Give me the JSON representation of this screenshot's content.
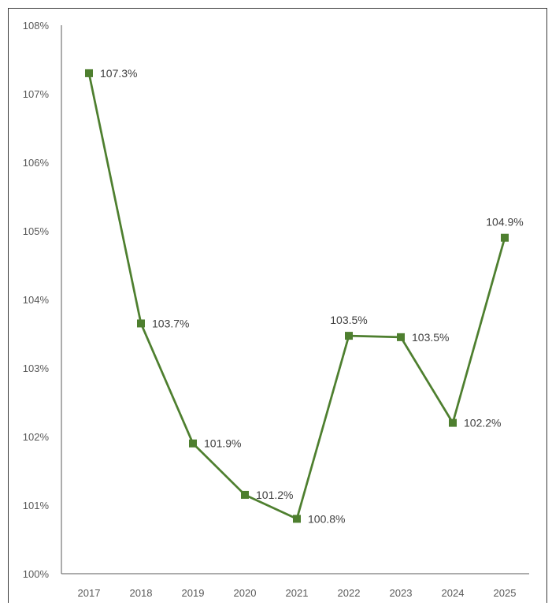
{
  "chart_data": {
    "type": "line",
    "categories": [
      "2017",
      "2018",
      "2019",
      "2020",
      "2021",
      "2022",
      "2023",
      "2024",
      "2025"
    ],
    "series": [
      {
        "values": [
          107.3,
          103.65,
          101.9,
          101.15,
          100.8,
          103.47,
          103.45,
          102.2,
          104.9
        ],
        "labels": [
          "107.3%",
          "103.7%",
          "101.9%",
          "101.2%",
          "100.8%",
          "103.5%",
          "103.5%",
          "102.2%",
          "104.9%"
        ]
      }
    ],
    "ylim": [
      100,
      108
    ],
    "y_ticks": [
      "100%",
      "101%",
      "102%",
      "103%",
      "104%",
      "105%",
      "106%",
      "107%",
      "108%"
    ],
    "grid": false,
    "legend": "none",
    "colors": {
      "series": "#4e7f2f",
      "axis": "#595959",
      "tick_text": "#595959",
      "label_text": "#404040"
    }
  }
}
